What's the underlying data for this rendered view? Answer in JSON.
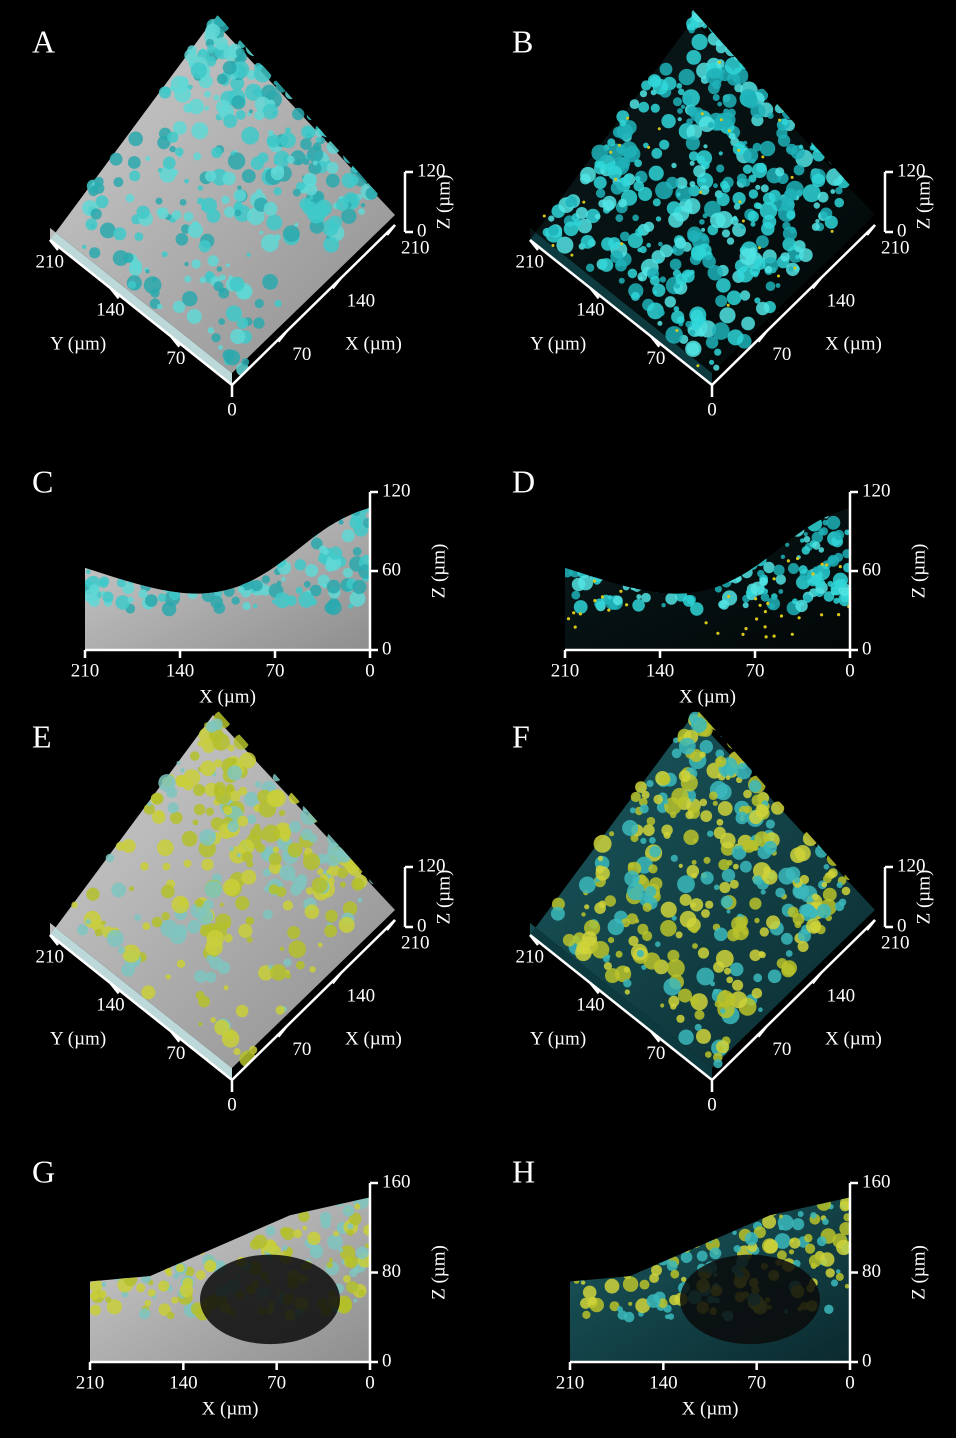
{
  "panels": [
    {
      "label": "A",
      "kind": "3d",
      "style": "gray-cyan",
      "origin": "0",
      "y_ticks": [
        "70",
        "140",
        "210"
      ],
      "x_ticks": [
        "70",
        "140",
        "210"
      ],
      "z_ticks": [
        "0",
        "120"
      ],
      "y_axis_title": "Y (µm)",
      "x_axis_title": "X (µm)",
      "z_axis_title": "Z (µm)"
    },
    {
      "label": "B",
      "kind": "3d",
      "style": "dark-cyan",
      "origin": "0",
      "y_ticks": [
        "70",
        "140",
        "210"
      ],
      "x_ticks": [
        "70",
        "140",
        "210"
      ],
      "z_ticks": [
        "0",
        "120"
      ],
      "y_axis_title": "Y (µm)",
      "x_axis_title": "X (µm)",
      "z_axis_title": "Z (µm)"
    },
    {
      "label": "C",
      "kind": "side",
      "style": "gray-cyan",
      "x_ticks": [
        "210",
        "140",
        "70",
        "0"
      ],
      "z_ticks": [
        "0",
        "60",
        "120"
      ],
      "x_axis_title": "X (µm)",
      "z_axis_title": "Z (µm)"
    },
    {
      "label": "D",
      "kind": "side",
      "style": "dark-cyan",
      "x_ticks": [
        "210",
        "140",
        "70",
        "0"
      ],
      "z_ticks": [
        "0",
        "60",
        "120"
      ],
      "x_axis_title": "X (µm)",
      "z_axis_title": "Z (µm)"
    },
    {
      "label": "E",
      "kind": "3d",
      "style": "gray-yellow",
      "origin": "0",
      "y_ticks": [
        "70",
        "140",
        "210"
      ],
      "x_ticks": [
        "70",
        "140",
        "210"
      ],
      "z_ticks": [
        "0",
        "120"
      ],
      "y_axis_title": "Y (µm)",
      "x_axis_title": "X (µm)",
      "z_axis_title": "Z (µm)"
    },
    {
      "label": "F",
      "kind": "3d",
      "style": "dark-yellow",
      "origin": "0",
      "y_ticks": [
        "70",
        "140",
        "210"
      ],
      "x_ticks": [
        "70",
        "140",
        "210"
      ],
      "z_ticks": [
        "0",
        "120"
      ],
      "y_axis_title": "Y (µm)",
      "x_axis_title": "X (µm)",
      "z_axis_title": "Z (µm)"
    },
    {
      "label": "G",
      "kind": "side",
      "style": "gray-yellow",
      "x_ticks": [
        "210",
        "140",
        "70",
        "0"
      ],
      "z_ticks": [
        "0",
        "80",
        "160"
      ],
      "x_axis_title": "X (µm)",
      "z_axis_title": "Z (µm)"
    },
    {
      "label": "H",
      "kind": "side",
      "style": "dark-yellow",
      "x_ticks": [
        "210",
        "140",
        "70",
        "0"
      ],
      "z_ticks": [
        "0",
        "80",
        "160"
      ],
      "x_axis_title": "X (µm)",
      "z_axis_title": "Z (µm)"
    }
  ]
}
